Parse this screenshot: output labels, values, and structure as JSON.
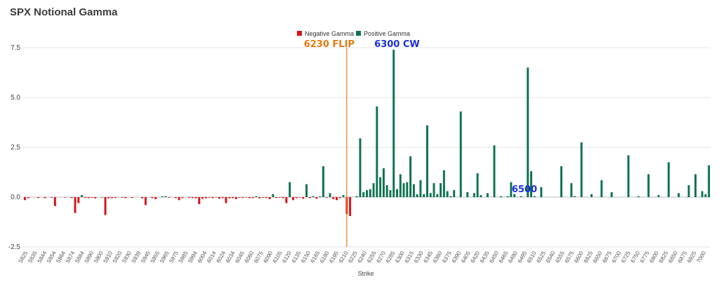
{
  "chart_data": {
    "type": "bar",
    "title": "SPX Notional Gamma",
    "xlabel": "Strike",
    "ylabel": "",
    "ylim": [
      -2.5,
      7.5
    ],
    "yticks": [
      "-2.5",
      "0.0",
      "2.5",
      "5.0",
      "7.5"
    ],
    "grid": true,
    "legend_position": "top-center",
    "series": [
      {
        "name": "Negative Gamma",
        "color": "#d9131a"
      },
      {
        "name": "Positive Gamma",
        "color": "#0e7250"
      }
    ],
    "x_tick_labels": [
      "5825",
      "5835",
      "5844",
      "5854",
      "5864",
      "5874",
      "5884",
      "5890",
      "5900",
      "5910",
      "5920",
      "5930",
      "5939",
      "5945",
      "5955",
      "5965",
      "5975",
      "5985",
      "5994",
      "6004",
      "6014",
      "6024",
      "6034",
      "6045",
      "6060",
      "6075",
      "6090",
      "6105",
      "6120",
      "6135",
      "6150",
      "6165",
      "6180",
      "6195",
      "6210",
      "6225",
      "6240",
      "6255",
      "6270",
      "6285",
      "6300",
      "6315",
      "6330",
      "6345",
      "6360",
      "6375",
      "6390",
      "6405",
      "6420",
      "6435",
      "6450",
      "6465",
      "6480",
      "6495",
      "6510",
      "6525",
      "6540",
      "6555",
      "6575",
      "6600",
      "6625",
      "6650",
      "6675",
      "6700",
      "6725",
      "6750",
      "6775",
      "6800",
      "6825",
      "6850",
      "6875",
      "6925",
      "7000"
    ],
    "values": [
      -0.15,
      -0.05,
      0,
      0,
      -0.04,
      0,
      -0.05,
      0,
      -0.03,
      -0.45,
      0,
      0,
      -0.02,
      0,
      -0.04,
      -0.8,
      -0.3,
      0.1,
      -0.04,
      -0.05,
      -0.03,
      -0.06,
      0,
      -0.02,
      -0.9,
      -0.06,
      -0.05,
      -0.04,
      0,
      -0.03,
      -0.05,
      0,
      -0.04,
      0,
      0,
      -0.06,
      -0.4,
      0,
      -0.05,
      -0.1,
      0,
      0.04,
      0.05,
      -0.03,
      0,
      -0.05,
      -0.15,
      -0.05,
      0,
      -0.04,
      -0.05,
      -0.06,
      -0.35,
      -0.08,
      -0.06,
      -0.03,
      -0.05,
      -0.02,
      -0.08,
      -0.05,
      -0.3,
      -0.06,
      -0.05,
      -0.1,
      -0.03,
      -0.04,
      -0.02,
      -0.05,
      -0.05,
      0.05,
      -0.06,
      -0.03,
      -0.04,
      -0.1,
      0.15,
      -0.04,
      -0.03,
      -0.05,
      -0.3,
      0.75,
      -0.15,
      -0.05,
      -0.02,
      -0.08,
      0.65,
      -0.05,
      0.05,
      -0.08,
      0.04,
      1.55,
      -0.03,
      0.2,
      -0.1,
      -0.15,
      -0.05,
      0.1,
      -0.85,
      -0.95,
      0,
      0.05,
      2.95,
      0.25,
      0.35,
      0.4,
      0.7,
      4.55,
      1.0,
      1.45,
      0.6,
      0.35,
      7.4,
      0.4,
      1.15,
      0.7,
      0.75,
      2.05,
      0.65,
      0.15,
      0.85,
      0.15,
      3.6,
      0.2,
      0.7,
      0.15,
      0.7,
      1.35,
      0.3,
      0.05,
      0.35,
      0,
      4.3,
      0,
      0.25,
      0,
      0.2,
      1.2,
      0.1,
      0,
      0.2,
      0,
      2.6,
      0,
      0.05,
      0,
      0.05,
      0.75,
      0.15,
      0,
      0.05,
      0,
      6.5,
      1.3,
      0.05,
      0,
      0.5,
      0,
      0,
      0,
      0,
      0,
      1.55,
      0,
      0,
      0.7,
      0.05,
      0,
      2.75,
      0,
      0,
      0.15,
      0,
      0,
      0.85,
      0,
      0,
      0.25,
      0,
      0,
      0,
      0,
      2.1,
      0,
      0,
      0.05,
      0,
      0,
      1.15,
      0,
      0,
      0.1,
      0,
      0,
      1.75,
      0,
      0,
      0.2,
      0,
      0,
      0.6,
      0,
      1.15,
      0,
      0.3,
      0.15,
      1.6
    ],
    "annotations": [
      {
        "label": "6230 FLIP",
        "color": "#e57a12",
        "bar_index": 96,
        "has_line": true
      },
      {
        "label": "6300 CW",
        "color": "#1a2fd6",
        "bar_index": 111,
        "has_line": false
      },
      {
        "label": "6500",
        "color": "#1a2fd6",
        "bar_index": 149,
        "has_line": false
      }
    ]
  }
}
